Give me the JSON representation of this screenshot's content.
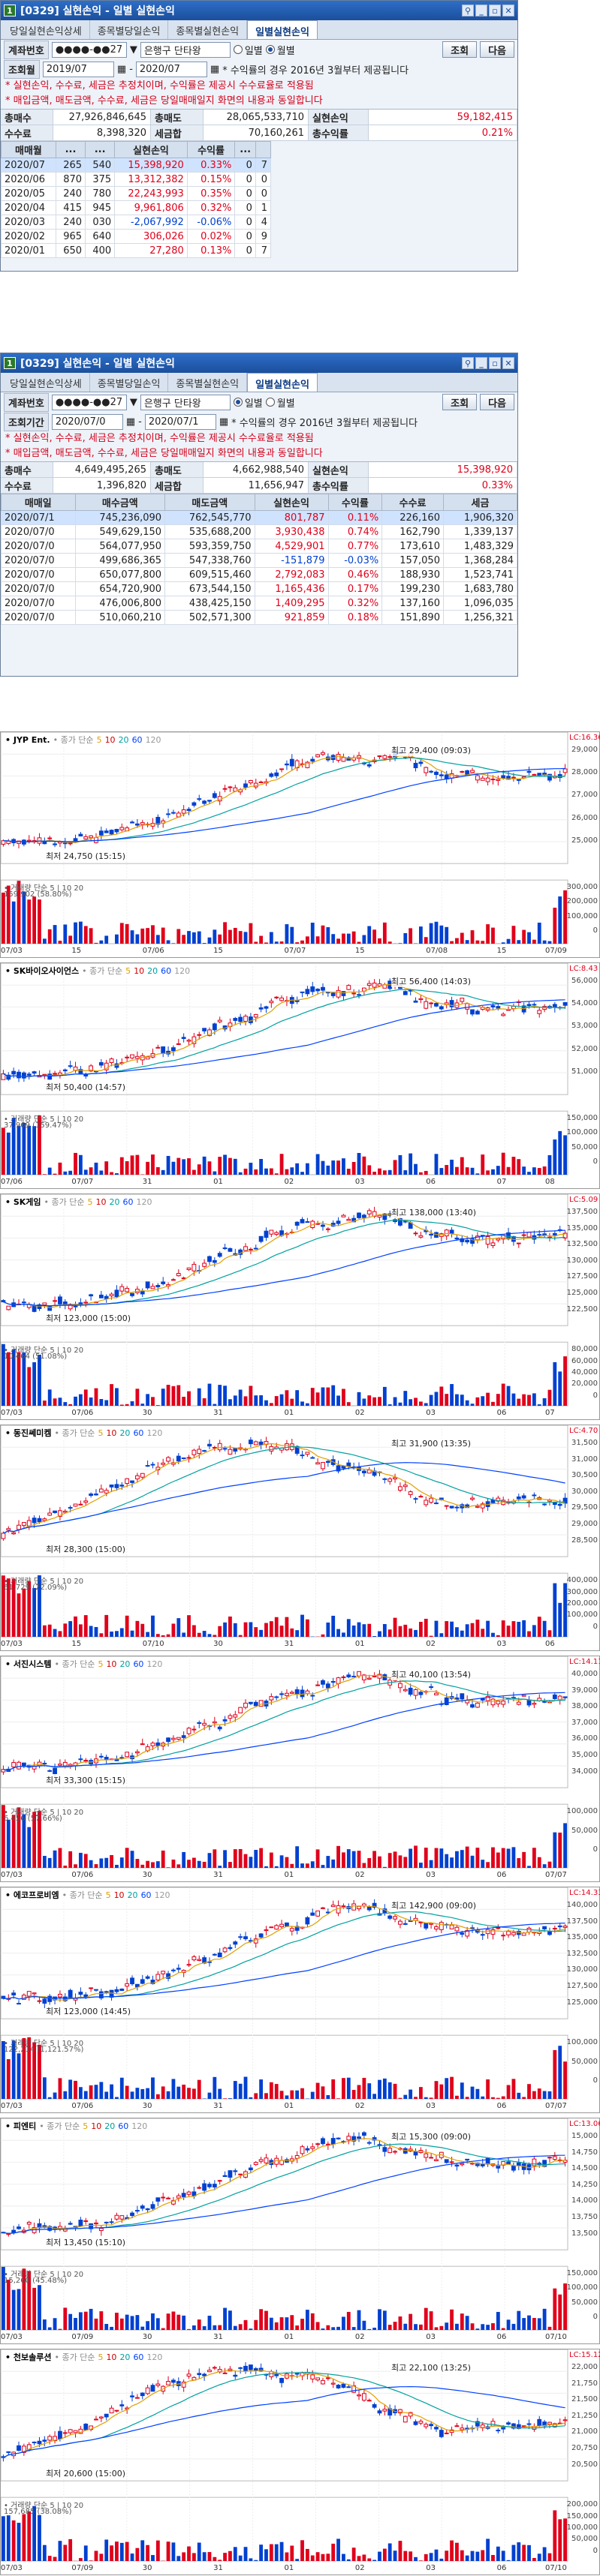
{
  "win1": {
    "title": "[0329] 실현손익 - 일별 실현손익",
    "tabs": [
      "당일실현손익상세",
      "종목별당일손익",
      "종목별실현손익",
      "일별실현손익"
    ],
    "acct_label": "계좌번호",
    "acct": "●●●●-●●27",
    "acct_type": "은행구 단타왕",
    "radio1": "일별",
    "radio2": "월별",
    "btn_query": "조회",
    "btn_next": "다음",
    "period_label": "조회월",
    "from": "2019/07",
    "to": "2020/07",
    "note": "* 수익률의 경우 2016년 3월부터 제공됩니다",
    "notice1": "* 실현손익, 수수료, 세금은 추정치이며, 수익률은 제공시 수수료율로 적용됨",
    "notice2": "* 매입금액, 매도금액, 수수료, 세금은 당일매매일지 화면의 내용과 동일합니다",
    "sum": {
      "k1": "총매수",
      "v1": "27,926,846,645",
      "k2": "총매도",
      "v2": "28,065,533,710",
      "k3": "실현손익",
      "v3": "59,182,415",
      "k4": "수수료",
      "v4": "8,398,320",
      "k5": "세금합",
      "v5": "70,160,261",
      "k6": "총수익률",
      "v6": "0.21%"
    },
    "headers": [
      "매매월",
      "...",
      "...",
      "실현손익",
      "수익률",
      "...",
      ""
    ],
    "rows": [
      [
        "2020/07",
        "265",
        "540",
        "15,398,920",
        "0.33%",
        "0",
        "7"
      ],
      [
        "2020/06",
        "870",
        "375",
        "13,312,382",
        "0.15%",
        "0",
        "0"
      ],
      [
        "2020/05",
        "240",
        "780",
        "22,243,993",
        "0.35%",
        "0",
        "0"
      ],
      [
        "2020/04",
        "415",
        "945",
        "9,961,806",
        "0.32%",
        "0",
        "1"
      ],
      [
        "2020/03",
        "240",
        "030",
        "-2,067,992",
        "-0.06%",
        "0",
        "4"
      ],
      [
        "2020/02",
        "965",
        "640",
        "306,026",
        "0.02%",
        "0",
        "9"
      ],
      [
        "2020/01",
        "650",
        "400",
        "27,280",
        "0.13%",
        "0",
        "7"
      ]
    ]
  },
  "win2": {
    "title": "[0329] 실현손익 - 일별 실현손익",
    "tabs": [
      "당일실현손익상세",
      "종목별당일손익",
      "종목별실현손익",
      "일별실현손익"
    ],
    "acct_label": "계좌번호",
    "acct": "●●●●-●●27",
    "acct_type": "은행구 단타왕",
    "radio1": "일별",
    "radio2": "월별",
    "btn_query": "조회",
    "btn_next": "다음",
    "period_label": "조회기간",
    "from": "2020/07/0",
    "to": "2020/07/1",
    "note": "* 수익률의 경우 2016년 3월부터 제공됩니다",
    "notice1": "* 실현손익, 수수료, 세금은 추정치이며, 수익률은 제공시 수수료율로 적용됨",
    "notice2": "* 매입금액, 매도금액, 수수료, 세금은 당일매매일지 화면의 내용과 동일합니다",
    "sum": {
      "k1": "총매수",
      "v1": "4,649,495,265",
      "k2": "총매도",
      "v2": "4,662,988,540",
      "k3": "실현손익",
      "v3": "15,398,920",
      "k4": "수수료",
      "v4": "1,396,820",
      "k5": "세금합",
      "v5": "11,656,947",
      "k6": "총수익률",
      "v6": "0.33%"
    },
    "headers": [
      "매매일",
      "매수금액",
      "매도금액",
      "실현손익",
      "수익률",
      "수수료",
      "세금"
    ],
    "rows": [
      [
        "2020/07/1",
        "745,236,090",
        "762,545,770",
        "801,787",
        "0.11%",
        "226,160",
        "1,906,320"
      ],
      [
        "2020/07/0",
        "549,629,150",
        "535,688,200",
        "3,930,438",
        "0.74%",
        "162,790",
        "1,339,137"
      ],
      [
        "2020/07/0",
        "564,077,950",
        "593,359,750",
        "4,529,901",
        "0.77%",
        "173,610",
        "1,483,329"
      ],
      [
        "2020/07/0",
        "499,686,365",
        "547,338,760",
        "-151,879",
        "-0.03%",
        "157,050",
        "1,368,284"
      ],
      [
        "2020/07/0",
        "650,077,800",
        "609,515,460",
        "2,792,083",
        "0.46%",
        "188,930",
        "1,523,741"
      ],
      [
        "2020/07/0",
        "654,720,900",
        "673,544,150",
        "1,165,436",
        "0.17%",
        "199,230",
        "1,683,780"
      ],
      [
        "2020/07/0",
        "476,006,800",
        "438,425,150",
        "1,409,295",
        "0.32%",
        "137,160",
        "1,096,035"
      ],
      [
        "2020/07/0",
        "510,060,210",
        "502,571,300",
        "921,859",
        "0.18%",
        "151,890",
        "1,256,321"
      ]
    ]
  },
  "charts": [
    {
      "name": "JYP Ent.",
      "ma_label": "종가 단순",
      "mas": [
        "5",
        "10",
        "20",
        "60",
        "120"
      ],
      "high": "최고 29,400 (09:03)",
      "low": "최저 24,750 (15:15)",
      "cur": "LC:16.36",
      "vol": "거래량 단순 5 | 10 20",
      "volv": "159,902 (58.80%)",
      "dates": [
        "07/03",
        "15",
        "07/06",
        "15",
        "07/07",
        "15",
        "07/08",
        "15",
        "07/09"
      ],
      "yticks": [
        "29,000",
        "28,000",
        "27,000",
        "26,000",
        "25,000"
      ],
      "vticks": [
        "300,000",
        "200,000",
        "100,000",
        "0"
      ],
      "trend": "up"
    },
    {
      "name": "SK바이오사이언스",
      "ma_label": "종가 단순",
      "mas": [
        "5",
        "10",
        "20",
        "60",
        "120"
      ],
      "high": "최고 56,400 (14:03)",
      "low": "최저 50,400 (14:57)",
      "cur": "LC:8.43",
      "vol": "거래량 단순 5 | 10 20",
      "volv": "37,969 (159.47%)",
      "dates": [
        "07/06",
        "07/07",
        "31",
        "01",
        "02",
        "03",
        "06",
        "07",
        "08"
      ],
      "yticks": [
        "56,000",
        "54,000",
        "53,000",
        "52,000",
        "51,000"
      ],
      "vticks": [
        "150,000",
        "100,000",
        "50,000",
        "0"
      ],
      "trend": "up"
    },
    {
      "name": "SK게임",
      "ma_label": "종가 단순",
      "mas": [
        "5",
        "10",
        "20",
        "60",
        "120"
      ],
      "high": "최고 138,000 (13:40)",
      "low": "최저 123,000 (15:00)",
      "cur": "LC:5.09",
      "vol": "거래량 단순 5 | 10 20",
      "volv": "10,464 (51.08%)",
      "dates": [
        "07/03",
        "07/06",
        "30",
        "31",
        "01",
        "02",
        "03",
        "06",
        "07"
      ],
      "yticks": [
        "137,500",
        "135,000",
        "132,500",
        "130,000",
        "127,500",
        "125,000",
        "122,500"
      ],
      "vticks": [
        "80,000",
        "60,000",
        "40,000",
        "20,000",
        "0"
      ],
      "trend": "up"
    },
    {
      "name": "동진쎄미켐",
      "ma_label": "종가 단순",
      "mas": [
        "5",
        "10",
        "20",
        "60",
        "120"
      ],
      "high": "최고 31,900 (13:35)",
      "low": "최저 28,300 (15:00)",
      "cur": "LC:4.70",
      "vol": "거래량 단순 5 | 10 20",
      "volv": "61,729 (22.09%)",
      "dates": [
        "07/03",
        "15",
        "07/10",
        "30",
        "31",
        "01",
        "02",
        "03",
        "06"
      ],
      "yticks": [
        "31,500",
        "31,000",
        "30,500",
        "30,000",
        "29,500",
        "29,000",
        "28,500"
      ],
      "vticks": [
        "400,000",
        "300,000",
        "200,000",
        "100,000",
        "0"
      ],
      "trend": "hump"
    },
    {
      "name": "서진시스템",
      "ma_label": "종가 단순",
      "mas": [
        "5",
        "10",
        "20",
        "60",
        "120"
      ],
      "high": "최고 40,100 (13:54)",
      "low": "최저 33,300 (15:15)",
      "cur": "LC:14.11",
      "vol": "거래량 단순 5 | 10 20",
      "volv": "6,456 (57.66%)",
      "dates": [
        "07/03",
        "07/06",
        "30",
        "31",
        "01",
        "02",
        "03",
        "06",
        "07/07"
      ],
      "yticks": [
        "40,000",
        "39,000",
        "38,000",
        "37,000",
        "36,000",
        "35,000",
        "34,000"
      ],
      "vticks": [
        "100,000",
        "50,000",
        "0"
      ],
      "trend": "up"
    },
    {
      "name": "에코프로비엠",
      "ma_label": "종가 단순",
      "mas": [
        "5",
        "10",
        "20",
        "60",
        "120"
      ],
      "high": "최고 142,900 (09:00)",
      "low": "최저 123,000 (14:45)",
      "cur": "LC:14.33",
      "vol": "거래량 단순 5 | 10 20",
      "volv": "122,214 (1,121.57%)",
      "dates": [
        "07/03",
        "07/06",
        "30",
        "31",
        "01",
        "02",
        "03",
        "06",
        "07/07"
      ],
      "yticks": [
        "140,000",
        "137,500",
        "135,000",
        "132,500",
        "130,000",
        "127,500",
        "125,000"
      ],
      "vticks": [
        "100,000",
        "50,000",
        "0"
      ],
      "trend": "up"
    },
    {
      "name": "피엔티",
      "ma_label": "종가 단순",
      "mas": [
        "5",
        "10",
        "20",
        "60",
        "120"
      ],
      "high": "최고 15,300 (09:00)",
      "low": "최저 13,450 (15:10)",
      "cur": "LC:13.06",
      "vol": "거래량 단순 5 | 10 20",
      "volv": "15,260 (45.48%)",
      "dates": [
        "07/03",
        "07/09",
        "30",
        "31",
        "01",
        "02",
        "03",
        "06",
        "07/10"
      ],
      "yticks": [
        "15,000",
        "14,750",
        "14,500",
        "14,250",
        "14,000",
        "13,750",
        "13,500"
      ],
      "vticks": [
        "150,000",
        "100,000",
        "50,000",
        "0"
      ],
      "trend": "up"
    },
    {
      "name": "천보솔루션",
      "ma_label": "종가 단순",
      "mas": [
        "5",
        "10",
        "20",
        "60",
        "120"
      ],
      "high": "최고 22,100 (13:25)",
      "low": "최저 20,600 (15:00)",
      "cur": "LC:15.12",
      "vol": "거래량 단순 5 | 10 20",
      "volv": "157,685 (38.08%)",
      "dates": [
        "07/03",
        "07/09",
        "30",
        "31",
        "01",
        "02",
        "03",
        "06",
        "07/10"
      ],
      "yticks": [
        "22,000",
        "21,750",
        "21,500",
        "21,250",
        "21,000",
        "20,750",
        "20,500"
      ],
      "vticks": [
        "200,000",
        "150,000",
        "100,000",
        "50,000",
        "0"
      ],
      "trend": "hump"
    }
  ]
}
